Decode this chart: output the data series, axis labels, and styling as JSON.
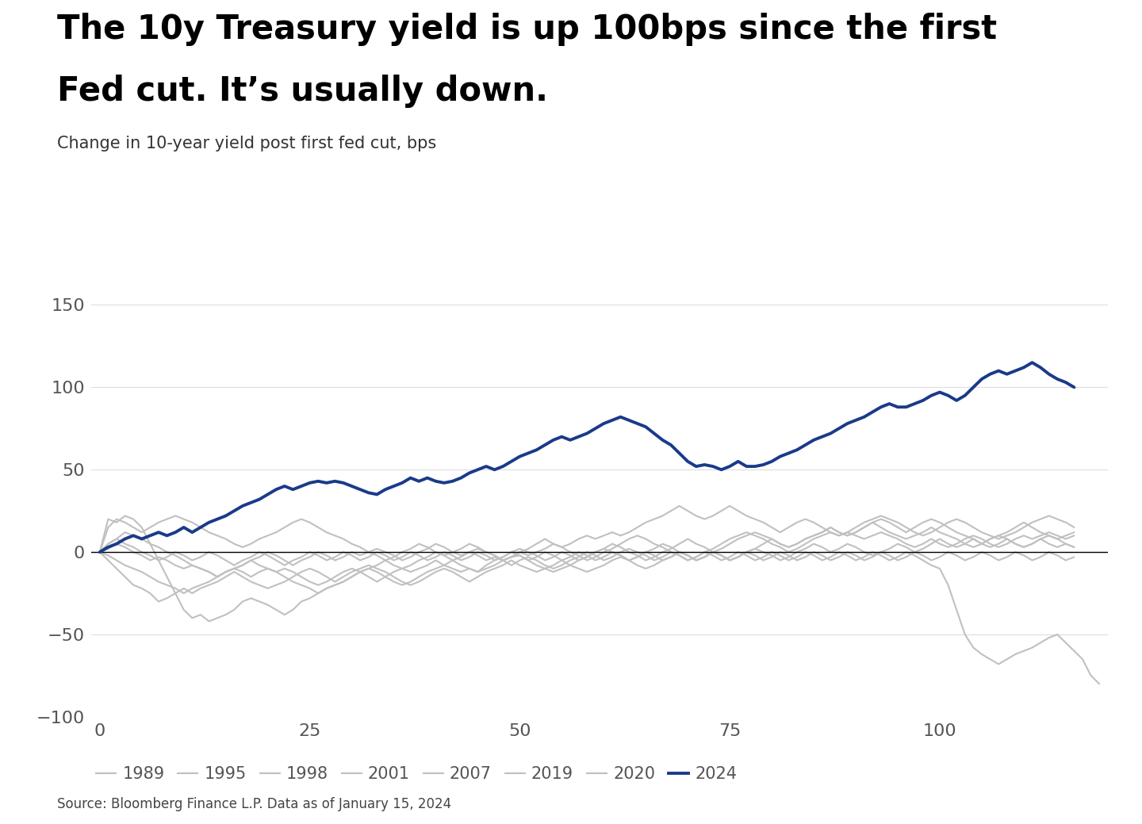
{
  "title_line1": "The 10y Treasury yield is up 100bps since the first",
  "title_line2": "Fed cut. It’s usually down.",
  "subtitle": "Change in 10-year yield post first fed cut, bps",
  "source": "Source: Bloomberg Finance L.P. Data as of January 15, 2024",
  "xlim": [
    -1,
    120
  ],
  "ylim": [
    -100,
    160
  ],
  "yticks": [
    -100,
    -50,
    0,
    50,
    100,
    150
  ],
  "xticks": [
    0,
    25,
    50,
    75,
    100
  ],
  "background_color": "#ffffff",
  "gray_color": "#c0c0c0",
  "blue_color": "#1a3a8a",
  "series": {
    "1989": [
      0,
      20,
      18,
      22,
      20,
      15,
      5,
      -5,
      -15,
      -25,
      -35,
      -40,
      -38,
      -42,
      -40,
      -38,
      -35,
      -30,
      -28,
      -30,
      -32,
      -35,
      -38,
      -35,
      -30,
      -28,
      -25,
      -22,
      -20,
      -18,
      -15,
      -12,
      -10,
      -12,
      -15,
      -18,
      -20,
      -18,
      -15,
      -12,
      -10,
      -8,
      -5,
      -8,
      -10,
      -12,
      -10,
      -8,
      -5,
      -3,
      -2,
      -5,
      -8,
      -10,
      -12,
      -10,
      -8,
      -5,
      -3,
      0,
      2,
      0,
      -2,
      -5,
      -3,
      0,
      2,
      5,
      3,
      0,
      -2,
      -5,
      -3,
      0,
      2,
      5,
      8,
      10,
      12,
      10,
      8,
      5,
      3,
      5,
      8,
      10,
      12,
      15,
      12,
      10,
      12,
      15,
      18,
      20,
      18,
      15,
      12,
      15,
      18,
      20,
      18,
      15,
      12,
      10,
      8,
      5,
      8,
      10,
      12,
      15,
      18,
      15,
      12,
      10,
      8,
      10,
      12
    ],
    "1995": [
      0,
      15,
      20,
      18,
      15,
      12,
      15,
      18,
      20,
      22,
      20,
      18,
      15,
      12,
      10,
      8,
      5,
      3,
      5,
      8,
      10,
      12,
      15,
      18,
      20,
      18,
      15,
      12,
      10,
      8,
      5,
      3,
      0,
      -2,
      -5,
      -3,
      0,
      2,
      5,
      3,
      0,
      -2,
      0,
      2,
      5,
      3,
      0,
      -2,
      -5,
      -3,
      0,
      2,
      5,
      8,
      5,
      3,
      0,
      -2,
      -5,
      -3,
      0,
      2,
      5,
      8,
      10,
      8,
      5,
      3,
      0,
      -2,
      -5,
      -3,
      0,
      2,
      5,
      8,
      10,
      12,
      10,
      8,
      5,
      3,
      0,
      2,
      5,
      8,
      10,
      12,
      10,
      12,
      15,
      18,
      20,
      22,
      20,
      18,
      15,
      12,
      10,
      12,
      15,
      18,
      20,
      18,
      15,
      12,
      10,
      8,
      10,
      12,
      15,
      18,
      20,
      22,
      20,
      18,
      15
    ],
    "1998": [
      0,
      5,
      8,
      12,
      10,
      8,
      5,
      3,
      0,
      -2,
      -5,
      -8,
      -10,
      -12,
      -15,
      -12,
      -10,
      -8,
      -5,
      -8,
      -10,
      -12,
      -15,
      -18,
      -20,
      -22,
      -25,
      -22,
      -20,
      -18,
      -15,
      -12,
      -10,
      -8,
      -5,
      -8,
      -10,
      -12,
      -10,
      -8,
      -5,
      -8,
      -10,
      -12,
      -10,
      -12,
      -8,
      -5,
      -3,
      0,
      2,
      0,
      -2,
      -5,
      -3,
      0,
      -2,
      -5,
      -3,
      0,
      2,
      5,
      3,
      0,
      -2,
      -5,
      -3,
      0,
      2,
      5,
      8,
      5,
      3,
      0,
      -2,
      -5,
      -3,
      0,
      2,
      5,
      8,
      5,
      3,
      5,
      8,
      10,
      12,
      15,
      12,
      10,
      12,
      15,
      18,
      15,
      12,
      10,
      8,
      10,
      12,
      15,
      12,
      10,
      8,
      5,
      3,
      5,
      8,
      10,
      8,
      5,
      3,
      5,
      8,
      10,
      8,
      5,
      3
    ],
    "2001": [
      0,
      -5,
      -10,
      -15,
      -20,
      -22,
      -25,
      -30,
      -28,
      -25,
      -22,
      -25,
      -22,
      -20,
      -18,
      -15,
      -12,
      -15,
      -18,
      -20,
      -22,
      -20,
      -18,
      -15,
      -12,
      -10,
      -12,
      -15,
      -18,
      -15,
      -12,
      -10,
      -8,
      -10,
      -12,
      -15,
      -18,
      -20,
      -18,
      -15,
      -12,
      -10,
      -12,
      -15,
      -18,
      -15,
      -12,
      -10,
      -8,
      -5,
      -8,
      -10,
      -12,
      -10,
      -8,
      -5,
      -8,
      -10,
      -12,
      -10,
      -8,
      -5,
      -3,
      -5,
      -8,
      -10,
      -8,
      -5,
      -3,
      0,
      -2,
      -5,
      -3,
      0,
      -2,
      -5,
      -3,
      0,
      2,
      0,
      -2,
      -5,
      -3,
      0,
      2,
      5,
      3,
      0,
      2,
      5,
      3,
      0,
      -2,
      0,
      2,
      5,
      3,
      0,
      2,
      5,
      8,
      5,
      3,
      5,
      8,
      5,
      3,
      5,
      8,
      5,
      3,
      5,
      8,
      5,
      3,
      5,
      3
    ],
    "2007": [
      0,
      5,
      8,
      5,
      3,
      0,
      -2,
      -5,
      -3,
      0,
      -2,
      -5,
      -3,
      0,
      -2,
      -5,
      -8,
      -5,
      -3,
      0,
      -2,
      -5,
      -8,
      -5,
      -3,
      0,
      -2,
      -5,
      -3,
      0,
      -2,
      -5,
      -3,
      0,
      -2,
      -5,
      -3,
      0,
      -2,
      -5,
      -3,
      0,
      -2,
      -5,
      -3,
      0,
      -2,
      -5,
      -3,
      0,
      -2,
      -5,
      -3,
      0,
      -2,
      -5,
      -3,
      0,
      -2,
      -5,
      -3,
      0,
      -2,
      -5,
      -3,
      0,
      -2,
      -5,
      -3,
      0,
      -2,
      -5,
      -3,
      0,
      -2,
      -5,
      -3,
      0,
      -2,
      -5,
      -3,
      0,
      -2,
      -5,
      -3,
      0,
      -2,
      -5,
      -3,
      0,
      -2,
      -5,
      -3,
      0,
      -2,
      -5,
      -3,
      0,
      -2,
      -5,
      -3,
      0,
      -2,
      -5,
      -3,
      0,
      -2,
      -5,
      -3,
      0,
      -2,
      -5,
      -3,
      0,
      -2,
      -5,
      -3
    ],
    "2019": [
      0,
      -2,
      -5,
      -8,
      -10,
      -12,
      -15,
      -18,
      -20,
      -22,
      -25,
      -22,
      -20,
      -18,
      -15,
      -12,
      -10,
      -8,
      -5,
      -3,
      0,
      -2,
      -5,
      -8,
      -5,
      -3,
      0,
      -2,
      -5,
      -3,
      0,
      -2,
      0,
      2,
      0,
      -2,
      -5,
      -3,
      0,
      2,
      5,
      3,
      0,
      -2,
      0,
      2,
      0,
      -2,
      -5,
      -3,
      0,
      -2,
      0,
      2,
      5,
      3,
      5,
      8,
      10,
      8,
      10,
      12,
      10,
      12,
      15,
      18,
      20,
      22,
      25,
      28,
      25,
      22,
      20,
      22,
      25,
      28,
      25,
      22,
      20,
      18,
      15,
      12,
      15,
      18,
      20,
      18,
      15,
      12,
      10,
      12,
      10,
      8,
      10,
      12,
      10,
      8,
      5,
      3,
      5,
      8,
      5,
      3,
      5,
      8,
      10,
      8,
      5,
      3,
      5,
      8,
      10,
      8,
      10,
      12,
      10,
      8,
      10
    ],
    "2020": [
      0,
      2,
      5,
      3,
      0,
      -2,
      -5,
      -3,
      -5,
      -8,
      -10,
      -8,
      -10,
      -12,
      -15,
      -12,
      -10,
      -12,
      -15,
      -12,
      -10,
      -12,
      -10,
      -12,
      -15,
      -18,
      -20,
      -18,
      -15,
      -12,
      -10,
      -12,
      -15,
      -18,
      -15,
      -12,
      -10,
      -8,
      -5,
      -3,
      0,
      -2,
      -5,
      -3,
      0,
      -2,
      -5,
      -3,
      -5,
      -8,
      -5,
      -3,
      -5,
      -8,
      -10,
      -8,
      -5,
      -3,
      0,
      -2,
      -5,
      -3,
      0,
      2,
      0,
      -2,
      -5,
      -3,
      0,
      -2,
      -5,
      -3,
      0,
      -2,
      -5,
      -3,
      0,
      -2,
      -5,
      -3,
      0,
      -2,
      -5,
      -3,
      0,
      -2,
      -5,
      -3,
      0,
      -2,
      -5,
      -3,
      0,
      -2,
      -5,
      -3,
      0,
      -2,
      -5,
      -8,
      -10,
      -20,
      -35,
      -50,
      -58,
      -62,
      -65,
      -68,
      -65,
      -62,
      -60,
      -58,
      -55,
      -52,
      -50,
      -55,
      -60,
      -65,
      -75,
      -80
    ],
    "2024": [
      0,
      3,
      5,
      8,
      10,
      8,
      10,
      12,
      10,
      12,
      15,
      12,
      15,
      18,
      20,
      22,
      25,
      28,
      30,
      32,
      35,
      38,
      40,
      38,
      40,
      42,
      43,
      42,
      43,
      42,
      40,
      38,
      36,
      35,
      38,
      40,
      42,
      45,
      43,
      45,
      43,
      42,
      43,
      45,
      48,
      50,
      52,
      50,
      52,
      55,
      58,
      60,
      62,
      65,
      68,
      70,
      68,
      70,
      72,
      75,
      78,
      80,
      82,
      80,
      78,
      76,
      72,
      68,
      65,
      60,
      55,
      52,
      53,
      52,
      50,
      52,
      55,
      52,
      52,
      53,
      55,
      58,
      60,
      62,
      65,
      68,
      70,
      72,
      75,
      78,
      80,
      82,
      85,
      88,
      90,
      88,
      88,
      90,
      92,
      95,
      97,
      95,
      92,
      95,
      100,
      105,
      108,
      110,
      108,
      110,
      112,
      115,
      112,
      108,
      105,
      103,
      100
    ]
  }
}
